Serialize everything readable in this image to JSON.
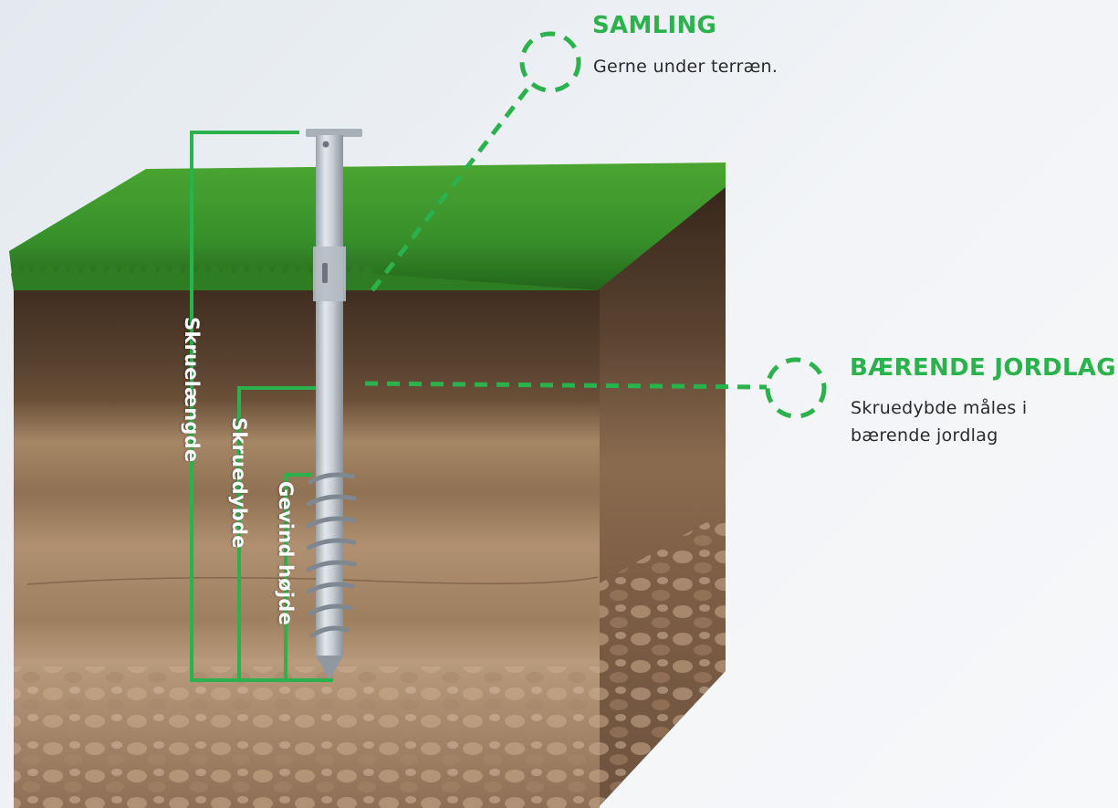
{
  "colors": {
    "accent": "#2bb24c",
    "grass": "#3f9a2c",
    "topsoil": "#5a4330",
    "subsoil": "#9c7d5e",
    "rock": "#b7977a",
    "pile": "#c8ced4"
  },
  "callouts": {
    "samling": {
      "title": "SAMLING",
      "desc": "Gerne under terræn."
    },
    "baerende": {
      "title": "BÆRENDE JORDLAG",
      "desc_line1": "Skruedybde måles i",
      "desc_line2": "bærende jordlag"
    }
  },
  "dimensions": {
    "skruelaengde": "Skruelængde",
    "skruedybde": "Skruedybde",
    "gevind": "Gevind højde"
  },
  "icons": [
    "dashed-circle-icon",
    "dashed-circle-icon"
  ]
}
